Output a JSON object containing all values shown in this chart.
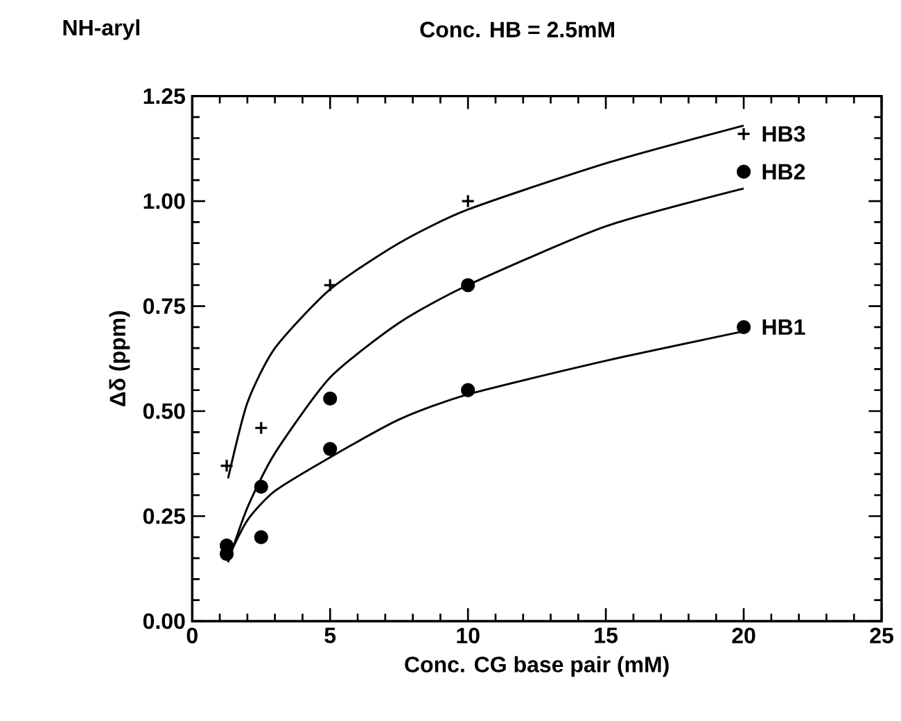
{
  "chart_data": {
    "type": "scatter",
    "title": "Conc. HB = 2.5mM",
    "annotations": [
      "NH-aryl"
    ],
    "xlabel": "Conc. CG base pair (mM)",
    "ylabel": "Δδ  (ppm)",
    "xlim": [
      0,
      25
    ],
    "xticks": [
      0,
      5,
      10,
      15,
      20,
      25
    ],
    "ylim": [
      0,
      1.25
    ],
    "yticks": [
      {
        "value": 0,
        "label": "0.00"
      },
      {
        "value": 0.25,
        "label": "0.25"
      },
      {
        "value": 0.5,
        "label": "0.50"
      },
      {
        "value": 0.75,
        "label": "0.75"
      },
      {
        "value": 1,
        "label": "1.00"
      },
      {
        "value": 1.25,
        "label": "1.25"
      }
    ],
    "grid": false,
    "legend": "right",
    "series": [
      {
        "name": "HB3",
        "marker": "cross",
        "color": "#000000",
        "x": [
          1.25,
          2.5,
          5,
          10,
          20
        ],
        "values": [
          0.37,
          0.46,
          0.8,
          1.0,
          1.16
        ]
      },
      {
        "name": "HB2",
        "marker": "circle",
        "color": "#000000",
        "x": [
          1.25,
          2.5,
          5,
          10,
          20
        ],
        "values": [
          0.18,
          0.32,
          0.53,
          0.8,
          1.07
        ]
      },
      {
        "name": "HB1",
        "marker": "circle",
        "color": "#000000",
        "x": [
          1.25,
          2.5,
          5,
          10,
          20
        ],
        "values": [
          0.16,
          0.2,
          0.41,
          0.55,
          0.7
        ]
      },
      {
        "type": "line",
        "marker": "none",
        "color": "#000000",
        "x": [
          1.3,
          2,
          3,
          5,
          7.5,
          10,
          15,
          20
        ],
        "values": [
          0.34,
          0.52,
          0.65,
          0.79,
          0.9,
          0.98,
          1.09,
          1.18
        ]
      },
      {
        "type": "line",
        "marker": "none",
        "color": "#000000",
        "x": [
          1.3,
          2,
          3,
          5,
          7.5,
          10,
          15,
          20
        ],
        "values": [
          0.14,
          0.27,
          0.4,
          0.58,
          0.71,
          0.8,
          0.94,
          1.03
        ]
      },
      {
        "type": "line",
        "marker": "none",
        "color": "#000000",
        "x": [
          1.3,
          2,
          3,
          5,
          7.5,
          10,
          15,
          20
        ],
        "values": [
          0.15,
          0.24,
          0.31,
          0.39,
          0.48,
          0.54,
          0.62,
          0.69
        ]
      }
    ]
  }
}
